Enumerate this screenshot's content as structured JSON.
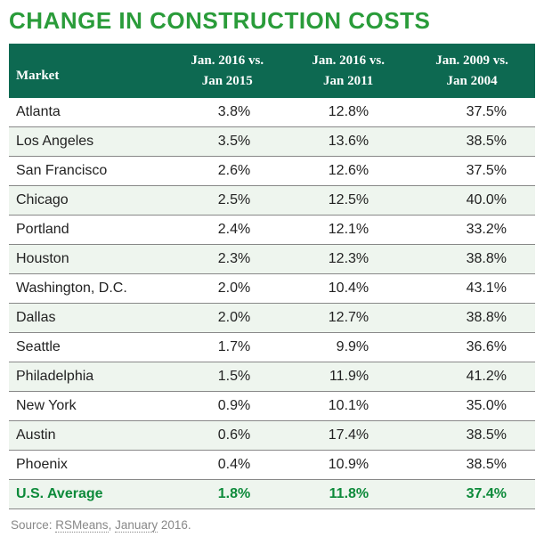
{
  "title": "CHANGE IN CONSTRUCTION COSTS",
  "title_color": "#2a9c3a",
  "header_bg": "#0d6951",
  "header_market": "Market",
  "columns": [
    {
      "line1": "Jan. 2016 vs.",
      "line2": "Jan 2015"
    },
    {
      "line1": "Jan. 2016 vs.",
      "line2": "Jan 2011"
    },
    {
      "line1": "Jan. 2009 vs.",
      "line2": "Jan 2004"
    }
  ],
  "rows": [
    {
      "market": "Atlanta",
      "v1": "3.8%",
      "v2": "12.8%",
      "v3": "37.5%"
    },
    {
      "market": "Los Angeles",
      "v1": "3.5%",
      "v2": "13.6%",
      "v3": "38.5%"
    },
    {
      "market": "San Francisco",
      "v1": "2.6%",
      "v2": "12.6%",
      "v3": "37.5%"
    },
    {
      "market": "Chicago",
      "v1": "2.5%",
      "v2": "12.5%",
      "v3": "40.0%"
    },
    {
      "market": "Portland",
      "v1": "2.4%",
      "v2": "12.1%",
      "v3": "33.2%"
    },
    {
      "market": "Houston",
      "v1": "2.3%",
      "v2": "12.3%",
      "v3": "38.8%"
    },
    {
      "market": "Washington, D.C.",
      "v1": "2.0%",
      "v2": "10.4%",
      "v3": "43.1%"
    },
    {
      "market": "Dallas",
      "v1": "2.0%",
      "v2": "12.7%",
      "v3": "38.8%"
    },
    {
      "market": "Seattle",
      "v1": "1.7%",
      "v2": "9.9%",
      "v3": "36.6%"
    },
    {
      "market": "Philadelphia",
      "v1": "1.5%",
      "v2": "11.9%",
      "v3": "41.2%"
    },
    {
      "market": "New York",
      "v1": "0.9%",
      "v2": "10.1%",
      "v3": "35.0%"
    },
    {
      "market": "Austin",
      "v1": "0.6%",
      "v2": "17.4%",
      "v3": "38.5%"
    },
    {
      "market": "Phoenix",
      "v1": "0.4%",
      "v2": "10.9%",
      "v3": "38.5%"
    }
  ],
  "average": {
    "market": "U.S. Average",
    "v1": "1.8%",
    "v2": "11.8%",
    "v3": "37.4%"
  },
  "average_color": "#0d8a3a",
  "row_alt_bg": "#eef5ee",
  "source_prefix": "Source: ",
  "source_link1": "RSMeans",
  "source_sep": ", ",
  "source_link2": "January",
  "source_suffix": " 2016.",
  "col_widths": [
    "30%",
    "23%",
    "23%",
    "24%"
  ]
}
